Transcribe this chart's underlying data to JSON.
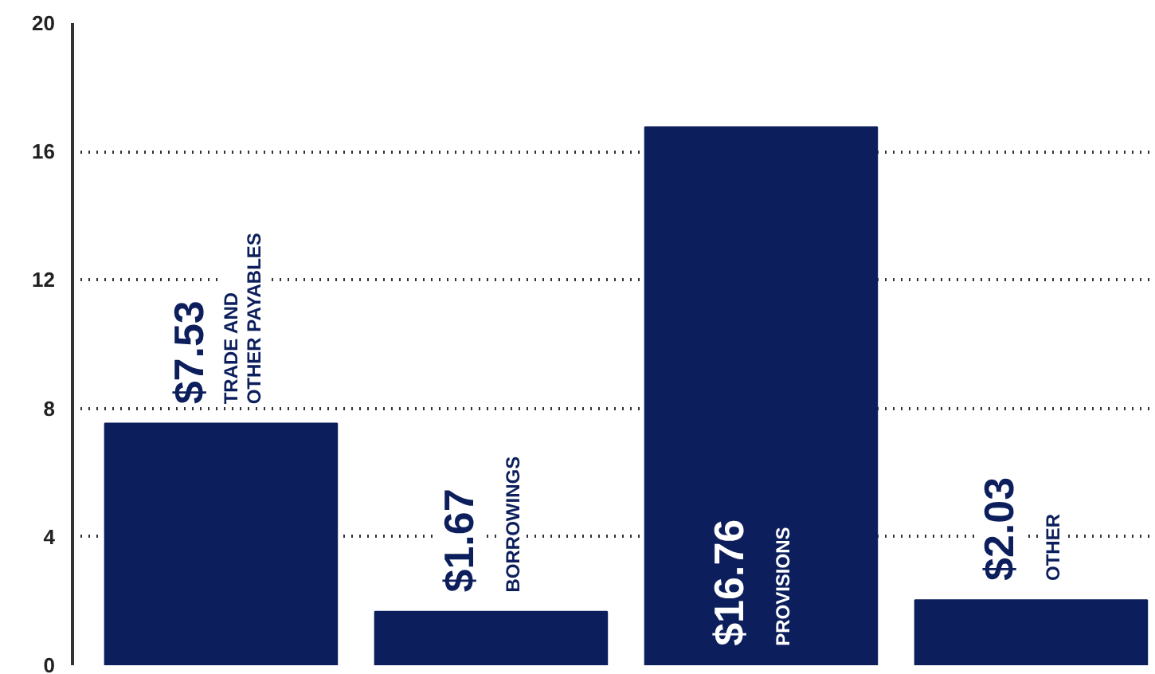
{
  "chart_data": {
    "type": "bar",
    "categories": [
      "TRADE AND\nOTHER PAYABLES",
      "BORROWINGS",
      "PROVISIONS",
      "OTHER"
    ],
    "values": [
      7.53,
      1.67,
      16.76,
      2.03
    ],
    "value_labels": [
      "$7.53",
      "$1.67",
      "$16.76",
      "$2.03"
    ],
    "color": "#0c1f5c",
    "ylim": [
      0,
      20
    ],
    "yticks": [
      0,
      4,
      8,
      12,
      16,
      20
    ],
    "grid": "y"
  }
}
